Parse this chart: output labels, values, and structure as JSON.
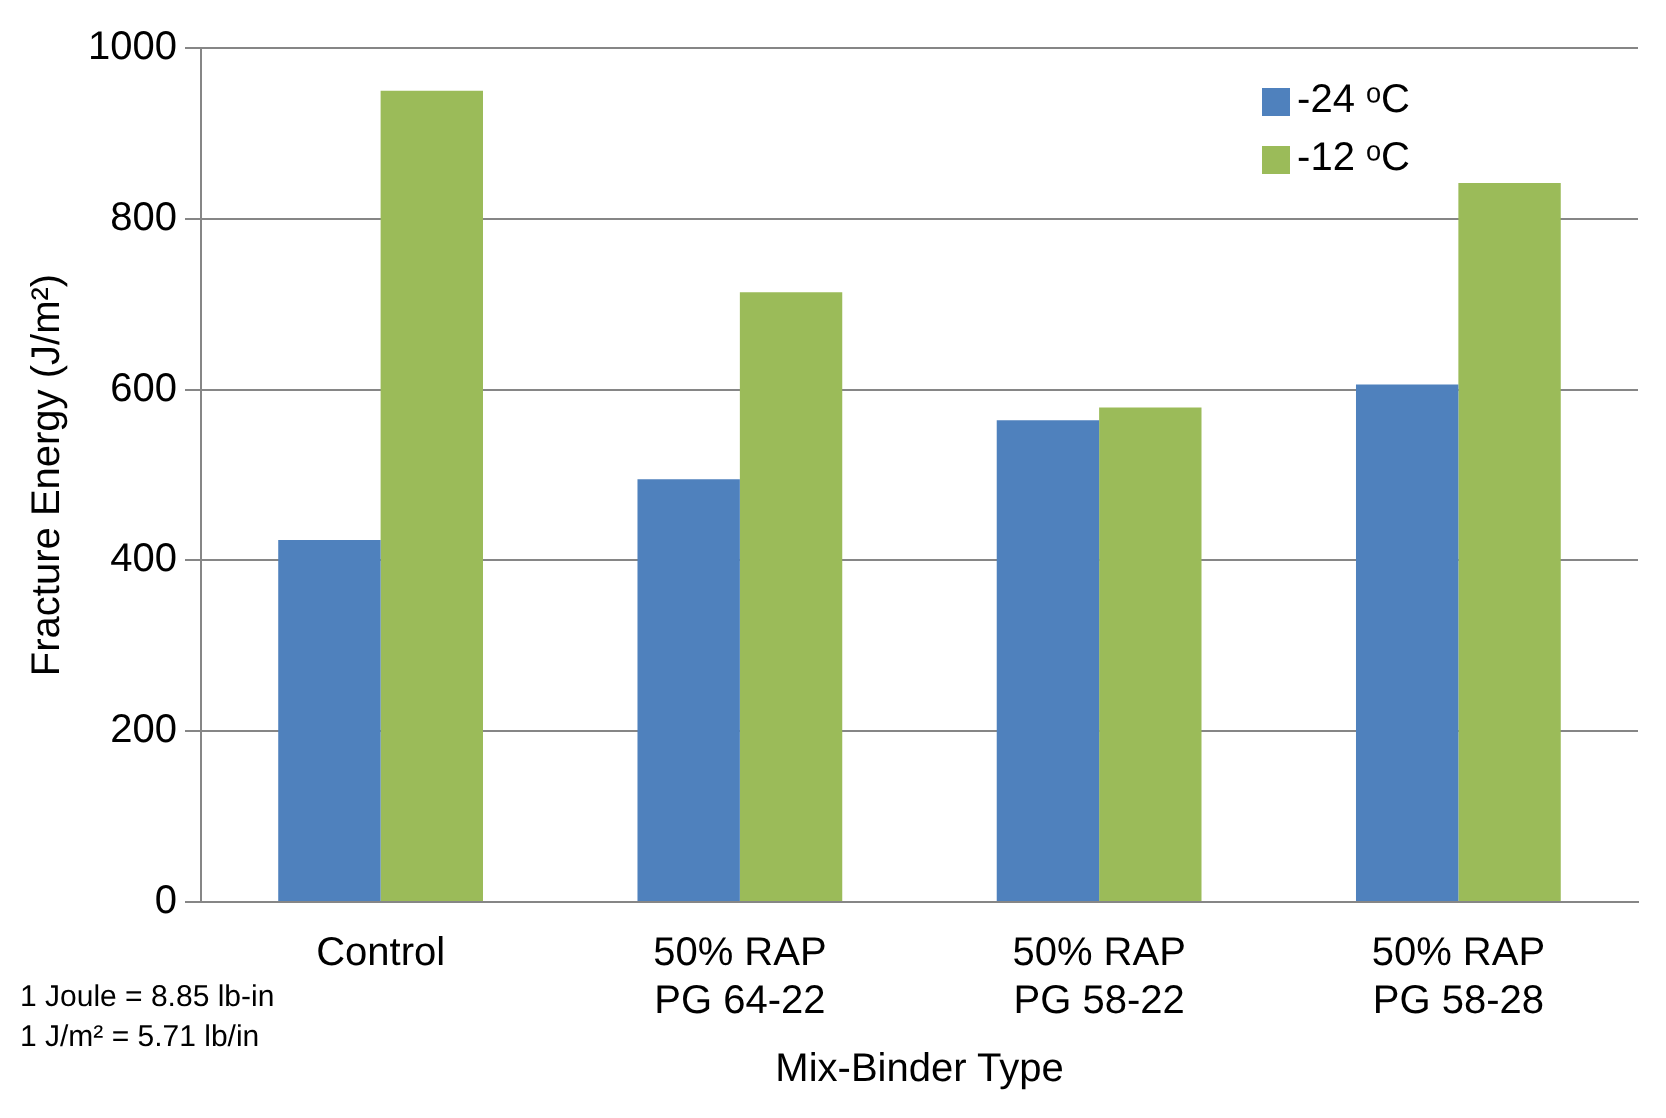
{
  "chart_data": {
    "type": "bar",
    "xlabel": "Mix-Binder Type",
    "ylabel": "Fracture Energy (J/m²)",
    "categories": [
      "Control",
      "50% RAP\nPG 64-22",
      "50% RAP\nPG 58-22",
      "50% RAP\nPG 58-28"
    ],
    "series": [
      {
        "name": "-24 ᵒC",
        "color": "#4f81bd",
        "values": [
          424,
          495,
          564,
          606
        ]
      },
      {
        "name": "-12 ᵒC",
        "color": "#9bbb59",
        "values": [
          950,
          714,
          579,
          842
        ]
      }
    ],
    "ylim": [
      0,
      1000
    ],
    "yticks": [
      0,
      200,
      400,
      600,
      800,
      1000
    ],
    "grid": "y",
    "legend": "top right",
    "annotations": [
      "1 Joule = 8.85 lb-in",
      "1 J/m² = 5.71 lb/in"
    ]
  }
}
